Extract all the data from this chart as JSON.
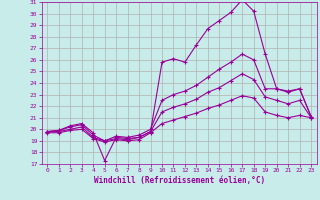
{
  "xlabel": "Windchill (Refroidissement éolien,°C)",
  "bg_color": "#c8ecea",
  "line_color": "#990099",
  "grid_color": "#b0b0b0",
  "xlim": [
    -0.5,
    23.5
  ],
  "ylim": [
    17,
    31
  ],
  "yticks": [
    17,
    18,
    19,
    20,
    21,
    22,
    23,
    24,
    25,
    26,
    27,
    28,
    29,
    30,
    31
  ],
  "xticks": [
    0,
    1,
    2,
    3,
    4,
    5,
    6,
    7,
    8,
    9,
    10,
    11,
    12,
    13,
    14,
    15,
    16,
    17,
    18,
    19,
    20,
    21,
    22,
    23
  ],
  "series": [
    {
      "x": [
        0,
        1,
        2,
        3,
        4,
        5,
        6,
        7,
        8,
        9,
        10,
        11,
        12,
        13,
        14,
        15,
        16,
        17,
        18,
        19,
        20,
        21,
        22,
        23
      ],
      "y": [
        19.8,
        19.9,
        20.3,
        20.5,
        19.7,
        17.3,
        19.3,
        19.2,
        19.3,
        19.8,
        25.8,
        26.1,
        25.8,
        27.3,
        28.7,
        29.4,
        30.1,
        31.2,
        30.2,
        26.5,
        23.5,
        23.2,
        23.5,
        21.1
      ]
    },
    {
      "x": [
        0,
        1,
        2,
        3,
        4,
        5,
        6,
        7,
        8,
        9,
        10,
        11,
        12,
        13,
        14,
        15,
        16,
        17,
        18,
        19,
        20,
        21,
        22,
        23
      ],
      "y": [
        19.8,
        19.9,
        20.2,
        20.4,
        19.5,
        19.0,
        19.4,
        19.3,
        19.5,
        20.0,
        22.5,
        23.0,
        23.3,
        23.8,
        24.5,
        25.2,
        25.8,
        26.5,
        26.0,
        23.5,
        23.5,
        23.3,
        23.5,
        21.1
      ]
    },
    {
      "x": [
        0,
        1,
        2,
        3,
        4,
        5,
        6,
        7,
        8,
        9,
        10,
        11,
        12,
        13,
        14,
        15,
        16,
        17,
        18,
        19,
        20,
        21,
        22,
        23
      ],
      "y": [
        19.8,
        19.8,
        20.0,
        20.2,
        19.3,
        19.0,
        19.2,
        19.1,
        19.3,
        19.8,
        21.5,
        21.9,
        22.2,
        22.6,
        23.2,
        23.6,
        24.2,
        24.8,
        24.3,
        22.8,
        22.5,
        22.2,
        22.5,
        21.0
      ]
    },
    {
      "x": [
        0,
        1,
        2,
        3,
        4,
        5,
        6,
        7,
        8,
        9,
        10,
        11,
        12,
        13,
        14,
        15,
        16,
        17,
        18,
        19,
        20,
        21,
        22,
        23
      ],
      "y": [
        19.7,
        19.7,
        19.9,
        20.0,
        19.2,
        18.9,
        19.1,
        19.0,
        19.1,
        19.7,
        20.5,
        20.8,
        21.1,
        21.4,
        21.8,
        22.1,
        22.5,
        22.9,
        22.7,
        21.5,
        21.2,
        21.0,
        21.2,
        21.0
      ]
    }
  ]
}
